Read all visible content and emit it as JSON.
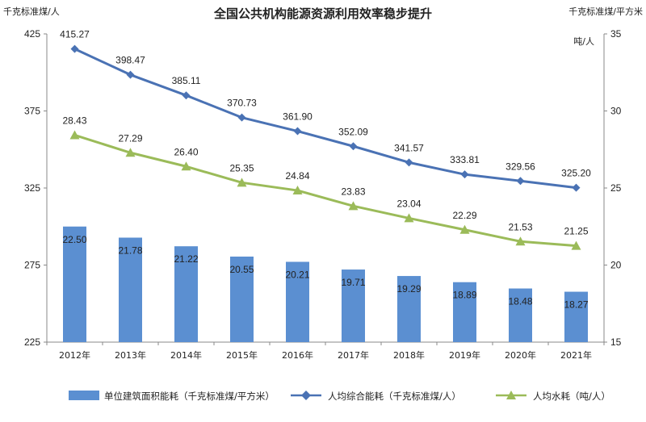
{
  "chart_data": {
    "type": "bar",
    "title": "全国公共机构能源资源利用效率稳步提升",
    "left_axis": {
      "unit": "千克标准煤/人",
      "ylim": [
        225,
        425
      ],
      "ticks": [
        425,
        375,
        325,
        275,
        225
      ]
    },
    "right_axis": {
      "unit_top": "千克标准煤/平方米",
      "unit_sub": "吨/人",
      "ylim": [
        15,
        35
      ],
      "ticks": [
        35,
        30,
        25,
        20,
        15
      ]
    },
    "categories": [
      "2012年",
      "2013年",
      "2014年",
      "2015年",
      "2016年",
      "2017年",
      "2018年",
      "2019年",
      "2020年",
      "2021年"
    ],
    "series": [
      {
        "name": "单位建筑面积能耗（千克标准煤/平方米）",
        "type": "bar",
        "axis": "right",
        "color": "#5b8fd1",
        "values": [
          22.5,
          21.78,
          21.22,
          20.55,
          20.21,
          19.71,
          19.29,
          18.89,
          18.48,
          18.27
        ],
        "labels": [
          "22.50",
          "21.78",
          "21.22",
          "20.55",
          "20.21",
          "19.71",
          "19.29",
          "18.89",
          "18.48",
          "18.27"
        ]
      },
      {
        "name": "人均综合能耗（千克标准煤/人）",
        "type": "line",
        "marker": "diamond",
        "axis": "left",
        "color": "#4a72b4",
        "values": [
          415.27,
          398.47,
          385.11,
          370.73,
          361.9,
          352.09,
          341.57,
          333.81,
          329.56,
          325.2
        ],
        "labels": [
          "415.27",
          "398.47",
          "385.11",
          "370.73",
          "361.90",
          "352.09",
          "341.57",
          "333.81",
          "329.56",
          "325.20"
        ]
      },
      {
        "name": "人均水耗（吨/人）",
        "type": "line",
        "marker": "triangle",
        "axis": "right",
        "color": "#9bbb59",
        "values": [
          28.43,
          27.29,
          26.4,
          25.35,
          24.84,
          23.83,
          23.04,
          22.29,
          21.53,
          21.25
        ],
        "labels": [
          "28.43",
          "27.29",
          "26.40",
          "25.35",
          "24.84",
          "23.83",
          "23.04",
          "22.29",
          "21.53",
          "21.25"
        ]
      }
    ],
    "grid": false,
    "legend": "bottom"
  }
}
